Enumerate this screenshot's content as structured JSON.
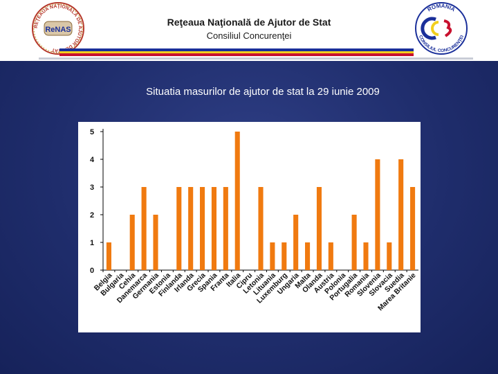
{
  "header": {
    "title_line1": "Reţeaua Naţională de Ajutor de Stat",
    "title_line2": "Consiliul Concurenţei",
    "left_logo": {
      "ring_text": "REŢEAUA NAŢIONALĂ DE AJUTOR DE STAT",
      "center_text": "ReNAS"
    },
    "right_logo": {
      "top_text": "ROMÂNIA",
      "bottom_text": "CONSILIUL CONCURENŢEI"
    }
  },
  "colors": {
    "background": "#1f2d6c",
    "bar": "#f07a10",
    "flag_blue": "#1a2f9a",
    "flag_yellow": "#f2cf1d",
    "flag_red": "#c8102e"
  },
  "slide_title": "Situatia masurilor de ajutor de stat la 29 iunie 2009",
  "chart_data": {
    "type": "bar",
    "title": "",
    "xlabel": "",
    "ylabel": "",
    "ylim": [
      0,
      5
    ],
    "yticks": [
      0,
      1,
      2,
      3,
      4,
      5
    ],
    "grid": false,
    "legend": "none",
    "categories": [
      "Belgia",
      "Bulgaria",
      "Cehia",
      "Danemarca",
      "Germania",
      "Estonia",
      "Finlanda",
      "Irlanda",
      "Grecia",
      "Spania",
      "Franta",
      "Italia",
      "Cipru",
      "Letonia",
      "Lituania",
      "Luxemburg",
      "Ungaria",
      "Malta",
      "Olanda",
      "Austria",
      "Polonia",
      "Portugalia",
      "Romania",
      "Slovenia",
      "Slovacia",
      "Suedia",
      "Marea Britanie"
    ],
    "values": [
      1,
      0,
      2,
      3,
      2,
      0,
      3,
      3,
      3,
      3,
      3,
      5,
      0,
      3,
      1,
      1,
      2,
      1,
      3,
      1,
      0,
      2,
      1,
      4,
      1,
      4,
      3
    ]
  }
}
